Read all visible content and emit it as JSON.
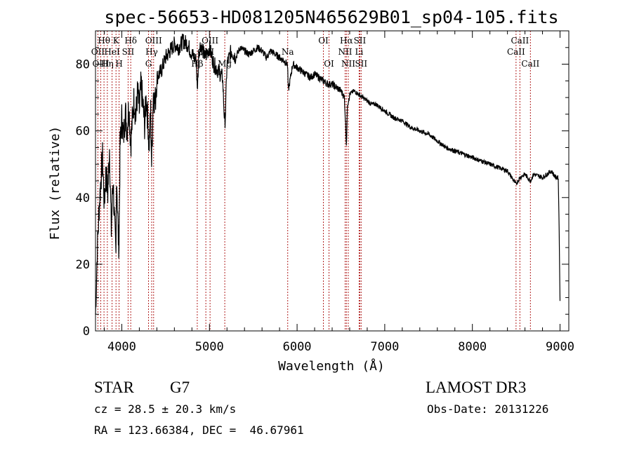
{
  "chart_data": {
    "type": "line",
    "title": "spec-56653-HD081205N465629B01_sp04-105.fits",
    "xlabel": "Wavelength (Å)",
    "ylabel": "Flux (relative)",
    "xlim": [
      3700,
      9100
    ],
    "ylim": [
      0,
      90
    ],
    "x_ticks": [
      4000,
      5000,
      6000,
      7000,
      8000,
      9000
    ],
    "y_ticks": [
      0,
      20,
      40,
      60,
      80
    ],
    "grid": false,
    "series": [
      {
        "name": "flux",
        "x": [
          3700,
          3710,
          3720,
          3730,
          3740,
          3760,
          3780,
          3800,
          3820,
          3840,
          3860,
          3880,
          3900,
          3920,
          3933,
          3940,
          3960,
          3968,
          3980,
          4000,
          4020,
          4040,
          4060,
          4080,
          4102,
          4120,
          4140,
          4160,
          4180,
          4200,
          4220,
          4240,
          4260,
          4280,
          4300,
          4310,
          4330,
          4340,
          4360,
          4380,
          4400,
          4450,
          4500,
          4550,
          4600,
          4650,
          4700,
          4750,
          4800,
          4850,
          4861,
          4880,
          4900,
          4950,
          5000,
          5050,
          5100,
          5150,
          5167,
          5175,
          5184,
          5200,
          5250,
          5300,
          5350,
          5400,
          5450,
          5500,
          5550,
          5600,
          5650,
          5700,
          5750,
          5800,
          5850,
          5890,
          5900,
          5950,
          6000,
          6050,
          6100,
          6150,
          6200,
          6250,
          6300,
          6350,
          6400,
          6450,
          6500,
          6540,
          6550,
          6563,
          6575,
          6600,
          6650,
          6700,
          6750,
          6800,
          6850,
          6900,
          6950,
          7000,
          7100,
          7200,
          7300,
          7400,
          7500,
          7600,
          7700,
          7800,
          7900,
          8000,
          8100,
          8200,
          8300,
          8400,
          8498,
          8542,
          8600,
          8662,
          8700,
          8800,
          8850,
          8900,
          8950,
          8980,
          8990,
          9000
        ],
        "values": [
          5,
          14,
          24,
          30,
          36,
          45,
          52,
          38,
          48,
          41,
          55,
          30,
          46,
          30,
          22,
          48,
          28,
          26,
          55,
          64,
          58,
          66,
          60,
          68,
          56,
          63,
          70,
          64,
          72,
          66,
          74,
          68,
          62,
          70,
          62,
          55,
          66,
          50,
          72,
          68,
          76,
          78,
          82,
          84,
          86,
          85,
          87,
          86,
          83,
          81,
          72,
          84,
          86,
          82,
          85,
          80,
          78,
          76,
          66,
          62,
          66,
          80,
          84,
          82,
          85,
          84,
          83,
          84,
          85,
          84,
          82,
          84,
          83,
          82,
          81,
          80,
          72,
          80,
          79,
          78,
          77,
          76,
          77,
          76,
          75,
          74,
          74,
          73,
          72,
          70,
          64,
          56,
          68,
          71,
          72,
          71,
          70,
          69,
          68,
          68,
          67,
          66,
          64,
          63,
          61,
          60,
          59,
          57,
          55,
          54,
          53,
          52,
          51,
          50,
          49,
          48,
          44,
          46,
          47,
          45,
          47,
          46,
          47,
          48,
          46,
          46,
          30,
          9
        ]
      }
    ],
    "lines": [
      {
        "label": "Hθ",
        "wavelength": 3797,
        "row": 1
      },
      {
        "label": "OII",
        "wavelength": 3727,
        "row": 2
      },
      {
        "label": "OIII",
        "wavelength": 3760,
        "row": 3
      },
      {
        "label": "K",
        "wavelength": 3934,
        "row": 1
      },
      {
        "label": "HeI",
        "wavelength": 3889,
        "row": 2
      },
      {
        "label": "Hη",
        "wavelength": 3835,
        "row": 3
      },
      {
        "label": "Hδ",
        "wavelength": 4102,
        "row": 1
      },
      {
        "label": "SII",
        "wavelength": 4072,
        "row": 2
      },
      {
        "label": "H",
        "wavelength": 3969,
        "row": 3
      },
      {
        "label": "OIII",
        "wavelength": 4363,
        "row": 1
      },
      {
        "label": "Hγ",
        "wavelength": 4341,
        "row": 2
      },
      {
        "label": "G",
        "wavelength": 4305,
        "row": 3
      },
      {
        "label": "OIII",
        "wavelength": 5007,
        "row": 1
      },
      {
        "label": "OIII",
        "wavelength": 4959,
        "row": 2
      },
      {
        "label": "Hβ",
        "wavelength": 4861,
        "row": 3
      },
      {
        "label": "Mg",
        "wavelength": 5175,
        "row": 3
      },
      {
        "label": "Na",
        "wavelength": 5893,
        "row": 2
      },
      {
        "label": "OI",
        "wavelength": 6300,
        "row": 1
      },
      {
        "label": "OI",
        "wavelength": 6364,
        "row": 3
      },
      {
        "label": "Hα",
        "wavelength": 6563,
        "row": 1
      },
      {
        "label": "NII",
        "wavelength": 6548,
        "row": 2
      },
      {
        "label": "NII",
        "wavelength": 6584,
        "row": 3
      },
      {
        "label": "SII",
        "wavelength": 6716,
        "row": 1
      },
      {
        "label": "Li",
        "wavelength": 6708,
        "row": 2
      },
      {
        "label": "SII",
        "wavelength": 6731,
        "row": 3
      },
      {
        "label": "CaII",
        "wavelength": 8542,
        "row": 1
      },
      {
        "label": "CaII",
        "wavelength": 8498,
        "row": 2
      },
      {
        "label": "CaII",
        "wavelength": 8662,
        "row": 3
      }
    ]
  },
  "info": {
    "object_class": "STAR",
    "subclass": "G7",
    "survey": "LAMOST DR3",
    "redshift": "cz = 28.5 ± 20.3 km/s",
    "obs_date": "Obs-Date: 20131226",
    "coords": "RA = 123.66384, DEC =  46.67961"
  },
  "colors": {
    "spectrum": "#000000",
    "line_markers": "#b22222",
    "axes": "#000000"
  }
}
